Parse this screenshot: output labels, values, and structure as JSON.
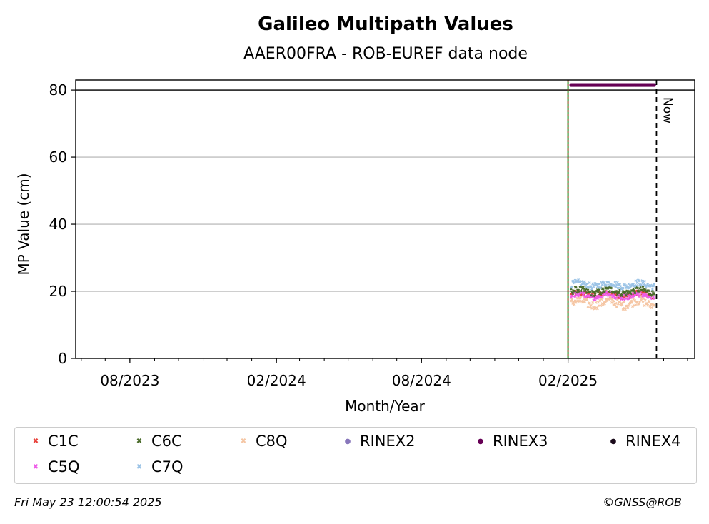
{
  "chart_data": {
    "type": "scatter",
    "title": "Galileo Multipath Values",
    "subtitle": "AAER00FRA - ROB-EUREF data node",
    "xlabel": "Month/Year",
    "ylabel": "MP Value (cm)",
    "ylim": [
      0,
      83
    ],
    "xlim": [
      "2023-05-25",
      "2025-07-10"
    ],
    "yticks": [
      0,
      20,
      40,
      60,
      80
    ],
    "xticks": [
      {
        "date": "2023-08-01",
        "label": "08/2023"
      },
      {
        "date": "2024-02-01",
        "label": "02/2024"
      },
      {
        "date": "2024-08-01",
        "label": "08/2024"
      },
      {
        "date": "2025-02-01",
        "label": "02/2025"
      }
    ],
    "grid": "horizontal",
    "reference_lines": {
      "horizontal_value": 80,
      "vertical_green_date": "2025-02-01",
      "now_date": "2025-05-23",
      "now_label": "Now"
    },
    "series": [
      {
        "name": "C1C",
        "color": "#e8413a",
        "marker": "x",
        "start": "2025-02-05",
        "end": "2025-05-20",
        "mean": 19.0,
        "spread": 0.8
      },
      {
        "name": "C5Q",
        "color": "#ee5ce8",
        "marker": "x",
        "start": "2025-02-05",
        "end": "2025-05-20",
        "mean": 18.6,
        "spread": 0.9
      },
      {
        "name": "C6C",
        "color": "#4a6b2a",
        "marker": "x",
        "start": "2025-02-05",
        "end": "2025-05-20",
        "mean": 20.0,
        "spread": 0.9
      },
      {
        "name": "C7Q",
        "color": "#9bc3e6",
        "marker": "x",
        "start": "2025-02-05",
        "end": "2025-05-20",
        "mean": 22.0,
        "spread": 0.9
      },
      {
        "name": "C8Q",
        "color": "#f5c6a4",
        "marker": "x",
        "start": "2025-02-05",
        "end": "2025-05-20",
        "mean": 16.5,
        "spread": 1.2
      },
      {
        "name": "RINEX2",
        "color": "#8877bb",
        "marker": "dot",
        "start": null,
        "end": null,
        "mean": null,
        "spread": null
      },
      {
        "name": "RINEX3",
        "color": "#660055",
        "marker": "dot",
        "start": "2025-02-05",
        "end": "2025-05-20",
        "mean": 81.5,
        "spread": 0
      },
      {
        "name": "RINEX4",
        "color": "#1a0a1a",
        "marker": "dot",
        "start": null,
        "end": null,
        "mean": null,
        "spread": null
      }
    ]
  },
  "legend": [
    {
      "label": "C1C",
      "color": "#e8413a",
      "glyph": "x"
    },
    {
      "label": "C6C",
      "color": "#4a6b2a",
      "glyph": "x"
    },
    {
      "label": "C8Q",
      "color": "#f5c6a4",
      "glyph": "x"
    },
    {
      "label": "RINEX2",
      "color": "#8877bb",
      "glyph": "dot"
    },
    {
      "label": "RINEX3",
      "color": "#660055",
      "glyph": "dot"
    },
    {
      "label": "RINEX4",
      "color": "#1a0a1a",
      "glyph": "dot"
    },
    {
      "label": "C5Q",
      "color": "#ee5ce8",
      "glyph": "x"
    },
    {
      "label": "C7Q",
      "color": "#9bc3e6",
      "glyph": "x"
    }
  ],
  "footer": {
    "timestamp": "Fri May 23 12:00:54 2025",
    "copyright": "©GNSS@ROB"
  }
}
